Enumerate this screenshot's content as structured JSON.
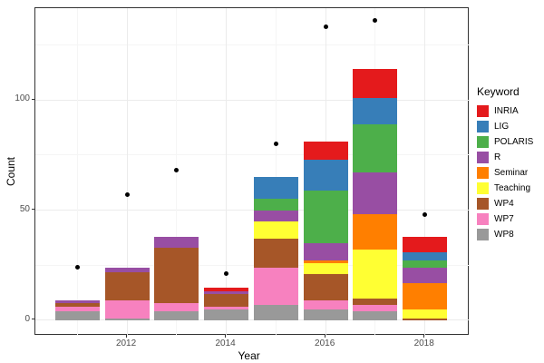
{
  "chart_data": {
    "type": "bar",
    "subtype": "stacked-bars-with-scatter-points",
    "title": "",
    "xlabel": "Year",
    "ylabel": "Count",
    "categories": [
      2011,
      2012,
      2013,
      2014,
      2015,
      2016,
      2017,
      2018
    ],
    "x_major_ticks": [
      2012,
      2014,
      2016,
      2018
    ],
    "x_minor_gridline_years": [
      2011,
      2013,
      2015,
      2017
    ],
    "y_ticks": [
      0,
      50,
      100
    ],
    "y_minor_gridlines": [
      25,
      75,
      125
    ],
    "ylim": [
      -7,
      141.6
    ],
    "grid": true,
    "legend": {
      "title": "Keyword",
      "position": "right"
    },
    "stack_order_bottom_to_top": [
      "WP8",
      "WP7",
      "WP4",
      "Teaching",
      "Seminar",
      "R",
      "POLARIS",
      "LIG",
      "INRIA"
    ],
    "series": [
      {
        "name": "INRIA",
        "color": "#e41a1c",
        "values": [
          0,
          0,
          0,
          2,
          0,
          8,
          13,
          7
        ]
      },
      {
        "name": "LIG",
        "color": "#377eb8",
        "values": [
          0,
          0,
          0,
          0,
          10,
          14,
          12,
          4
        ]
      },
      {
        "name": "POLARIS",
        "color": "#4daf4a",
        "values": [
          0,
          0,
          0,
          0,
          5,
          24,
          22,
          3
        ]
      },
      {
        "name": "R",
        "color": "#984ea3",
        "values": [
          1,
          2,
          5,
          1,
          5,
          8,
          19,
          7
        ]
      },
      {
        "name": "Seminar",
        "color": "#ff7f00",
        "values": [
          0,
          0,
          0,
          0,
          0,
          1,
          16,
          12
        ]
      },
      {
        "name": "Teaching",
        "color": "#ffff33",
        "values": [
          0,
          0,
          0,
          0,
          8,
          5,
          22,
          4
        ]
      },
      {
        "name": "WP4",
        "color": "#a65628",
        "values": [
          2,
          13,
          25,
          6,
          13,
          12,
          3,
          1
        ]
      },
      {
        "name": "WP7",
        "color": "#f781bf",
        "values": [
          2,
          8,
          4,
          1,
          17,
          4,
          3,
          0
        ]
      },
      {
        "name": "WP8",
        "color": "#999999",
        "values": [
          4,
          1,
          4,
          5,
          7,
          5,
          4,
          0
        ]
      }
    ],
    "bar_totals": [
      9,
      24,
      38,
      15,
      65,
      81,
      114,
      38
    ],
    "points": {
      "name": "yearly-total-dot",
      "color": "#000000",
      "values": [
        24,
        57,
        68,
        21,
        80,
        133,
        136,
        48
      ]
    }
  }
}
